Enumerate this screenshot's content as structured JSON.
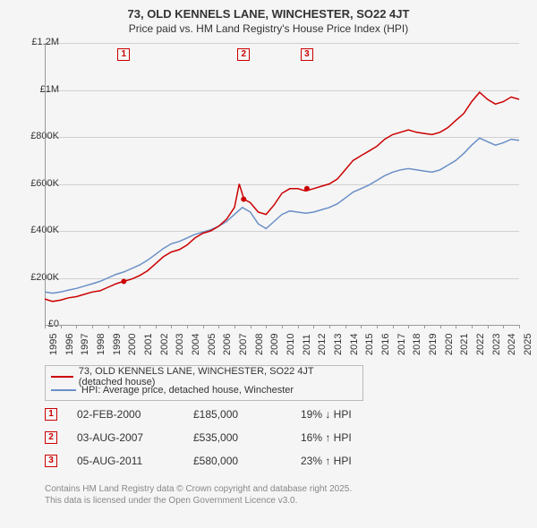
{
  "title": "73, OLD KENNELS LANE, WINCHESTER, SO22 4JT",
  "subtitle": "Price paid vs. HM Land Registry's House Price Index (HPI)",
  "chart": {
    "type": "line",
    "background_color": "#f5f5f5",
    "grid_color": "#d0d0d0",
    "axis_color": "#999999",
    "ylim": [
      0,
      1200000
    ],
    "ytick_step": 200000,
    "ytick_labels": [
      "£0",
      "£200K",
      "£400K",
      "£600K",
      "£800K",
      "£1M",
      "£1.2M"
    ],
    "xlim": [
      1995,
      2025
    ],
    "xtick_labels": [
      "1995",
      "1996",
      "1997",
      "1998",
      "1999",
      "2000",
      "2001",
      "2002",
      "2003",
      "2004",
      "2005",
      "2006",
      "2007",
      "2008",
      "2009",
      "2010",
      "2011",
      "2012",
      "2013",
      "2014",
      "2015",
      "2016",
      "2017",
      "2018",
      "2019",
      "2020",
      "2021",
      "2022",
      "2023",
      "2024",
      "2025"
    ],
    "series": [
      {
        "name": "property",
        "label": "73, OLD KENNELS LANE, WINCHESTER, SO22 4JT (detached house)",
        "color": "#cc0000",
        "line_width": 1.5,
        "data": [
          [
            1995,
            110000
          ],
          [
            1995.5,
            100000
          ],
          [
            1996,
            105000
          ],
          [
            1996.5,
            115000
          ],
          [
            1997,
            120000
          ],
          [
            1997.5,
            130000
          ],
          [
            1998,
            140000
          ],
          [
            1998.5,
            145000
          ],
          [
            1999,
            160000
          ],
          [
            1999.5,
            175000
          ],
          [
            2000,
            185000
          ],
          [
            2000.5,
            195000
          ],
          [
            2001,
            210000
          ],
          [
            2001.5,
            230000
          ],
          [
            2002,
            260000
          ],
          [
            2002.5,
            290000
          ],
          [
            2003,
            310000
          ],
          [
            2003.5,
            320000
          ],
          [
            2004,
            340000
          ],
          [
            2004.5,
            370000
          ],
          [
            2005,
            390000
          ],
          [
            2005.5,
            400000
          ],
          [
            2006,
            420000
          ],
          [
            2006.5,
            450000
          ],
          [
            2007,
            500000
          ],
          [
            2007.3,
            600000
          ],
          [
            2007.6,
            535000
          ],
          [
            2008,
            520000
          ],
          [
            2008.5,
            480000
          ],
          [
            2009,
            470000
          ],
          [
            2009.5,
            510000
          ],
          [
            2010,
            560000
          ],
          [
            2010.5,
            580000
          ],
          [
            2011,
            580000
          ],
          [
            2011.5,
            570000
          ],
          [
            2012,
            580000
          ],
          [
            2012.5,
            590000
          ],
          [
            2013,
            600000
          ],
          [
            2013.5,
            620000
          ],
          [
            2014,
            660000
          ],
          [
            2014.5,
            700000
          ],
          [
            2015,
            720000
          ],
          [
            2015.5,
            740000
          ],
          [
            2016,
            760000
          ],
          [
            2016.5,
            790000
          ],
          [
            2017,
            810000
          ],
          [
            2017.5,
            820000
          ],
          [
            2018,
            830000
          ],
          [
            2018.5,
            820000
          ],
          [
            2019,
            815000
          ],
          [
            2019.5,
            810000
          ],
          [
            2020,
            820000
          ],
          [
            2020.5,
            840000
          ],
          [
            2021,
            870000
          ],
          [
            2021.5,
            900000
          ],
          [
            2022,
            950000
          ],
          [
            2022.5,
            990000
          ],
          [
            2023,
            960000
          ],
          [
            2023.5,
            940000
          ],
          [
            2024,
            950000
          ],
          [
            2024.5,
            970000
          ],
          [
            2025,
            960000
          ]
        ]
      },
      {
        "name": "hpi",
        "label": "HPI: Average price, detached house, Winchester",
        "color": "#6a8fc7",
        "line_width": 1.5,
        "data": [
          [
            1995,
            140000
          ],
          [
            1995.5,
            135000
          ],
          [
            1996,
            140000
          ],
          [
            1996.5,
            148000
          ],
          [
            1997,
            155000
          ],
          [
            1997.5,
            165000
          ],
          [
            1998,
            175000
          ],
          [
            1998.5,
            185000
          ],
          [
            1999,
            200000
          ],
          [
            1999.5,
            215000
          ],
          [
            2000,
            225000
          ],
          [
            2000.5,
            240000
          ],
          [
            2001,
            255000
          ],
          [
            2001.5,
            275000
          ],
          [
            2002,
            300000
          ],
          [
            2002.5,
            325000
          ],
          [
            2003,
            345000
          ],
          [
            2003.5,
            355000
          ],
          [
            2004,
            370000
          ],
          [
            2004.5,
            385000
          ],
          [
            2005,
            395000
          ],
          [
            2005.5,
            405000
          ],
          [
            2006,
            420000
          ],
          [
            2006.5,
            440000
          ],
          [
            2007,
            470000
          ],
          [
            2007.5,
            500000
          ],
          [
            2008,
            480000
          ],
          [
            2008.5,
            430000
          ],
          [
            2009,
            410000
          ],
          [
            2009.5,
            440000
          ],
          [
            2010,
            470000
          ],
          [
            2010.5,
            485000
          ],
          [
            2011,
            480000
          ],
          [
            2011.5,
            475000
          ],
          [
            2012,
            480000
          ],
          [
            2012.5,
            490000
          ],
          [
            2013,
            500000
          ],
          [
            2013.5,
            515000
          ],
          [
            2014,
            540000
          ],
          [
            2014.5,
            565000
          ],
          [
            2015,
            580000
          ],
          [
            2015.5,
            595000
          ],
          [
            2016,
            615000
          ],
          [
            2016.5,
            635000
          ],
          [
            2017,
            650000
          ],
          [
            2017.5,
            660000
          ],
          [
            2018,
            665000
          ],
          [
            2018.5,
            660000
          ],
          [
            2019,
            655000
          ],
          [
            2019.5,
            650000
          ],
          [
            2020,
            660000
          ],
          [
            2020.5,
            680000
          ],
          [
            2021,
            700000
          ],
          [
            2021.5,
            730000
          ],
          [
            2022,
            765000
          ],
          [
            2022.5,
            795000
          ],
          [
            2023,
            780000
          ],
          [
            2023.5,
            765000
          ],
          [
            2024,
            775000
          ],
          [
            2024.5,
            790000
          ],
          [
            2025,
            785000
          ]
        ]
      }
    ],
    "markers": [
      {
        "id": "1",
        "x": 2000.0,
        "point_y": 185000
      },
      {
        "id": "2",
        "x": 2007.58,
        "point_y": 535000
      },
      {
        "id": "3",
        "x": 2011.58,
        "point_y": 580000
      }
    ],
    "marker_color": "#cc0000",
    "marker_point_radius": 3
  },
  "transactions": [
    {
      "id": "1",
      "date": "02-FEB-2000",
      "price": "£185,000",
      "hpi": "19% ↓ HPI"
    },
    {
      "id": "2",
      "date": "03-AUG-2007",
      "price": "£535,000",
      "hpi": "16% ↑ HPI"
    },
    {
      "id": "3",
      "date": "05-AUG-2011",
      "price": "£580,000",
      "hpi": "23% ↑ HPI"
    }
  ],
  "footer_line1": "Contains HM Land Registry data © Crown copyright and database right 2025.",
  "footer_line2": "This data is licensed under the Open Government Licence v3.0."
}
